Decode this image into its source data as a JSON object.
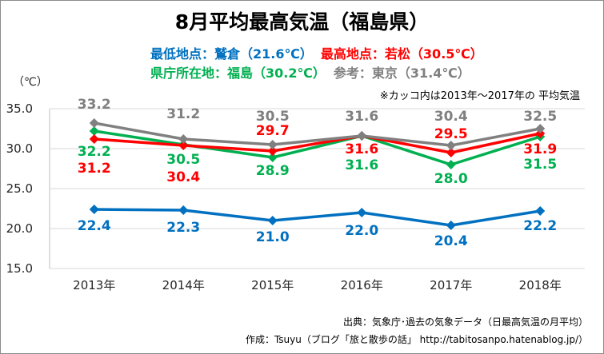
{
  "chart_data": {
    "type": "line",
    "title": "8月平均最高気温（福島県）",
    "annotation": "※カッコ内は2013年～2017年の 平均気温",
    "xlabel": "",
    "ylabel": "（℃）",
    "categories": [
      "2013年",
      "2014年",
      "2015年",
      "2016年",
      "2017年",
      "2018年"
    ],
    "ylim": [
      15,
      35
    ],
    "yticks": [
      15,
      20,
      25,
      30,
      35
    ],
    "grid": true,
    "series": [
      {
        "name": "鷲倉",
        "role": "最低地点：",
        "average_text": "（21.6℃）",
        "color": "#0070C0",
        "values": [
          22.4,
          22.3,
          21.0,
          22.0,
          20.4,
          22.2
        ]
      },
      {
        "name": "若松",
        "role": "最高地点：",
        "average_text": "（30.5℃）",
        "color": "#FF0000",
        "values": [
          31.2,
          30.4,
          29.7,
          31.6,
          29.5,
          31.9
        ]
      },
      {
        "name": "福島",
        "role": "県庁所在地：",
        "average_text": "（30.2℃）",
        "color": "#00B050",
        "values": [
          32.2,
          30.5,
          28.9,
          31.6,
          28.0,
          31.5
        ]
      },
      {
        "name": "東京",
        "role": "参考：",
        "average_text": "（31.4℃）",
        "color": "#808080",
        "values": [
          33.2,
          31.2,
          30.5,
          31.6,
          30.4,
          32.5
        ]
      }
    ]
  },
  "footer": {
    "source": "出典：気象庁･過去の気象データ（日最高気温の月平均）",
    "credit": "作成：Tsuyu（ブログ「旅と散歩の話」 http://tabitosanpo.hatenablog.jp/）"
  }
}
